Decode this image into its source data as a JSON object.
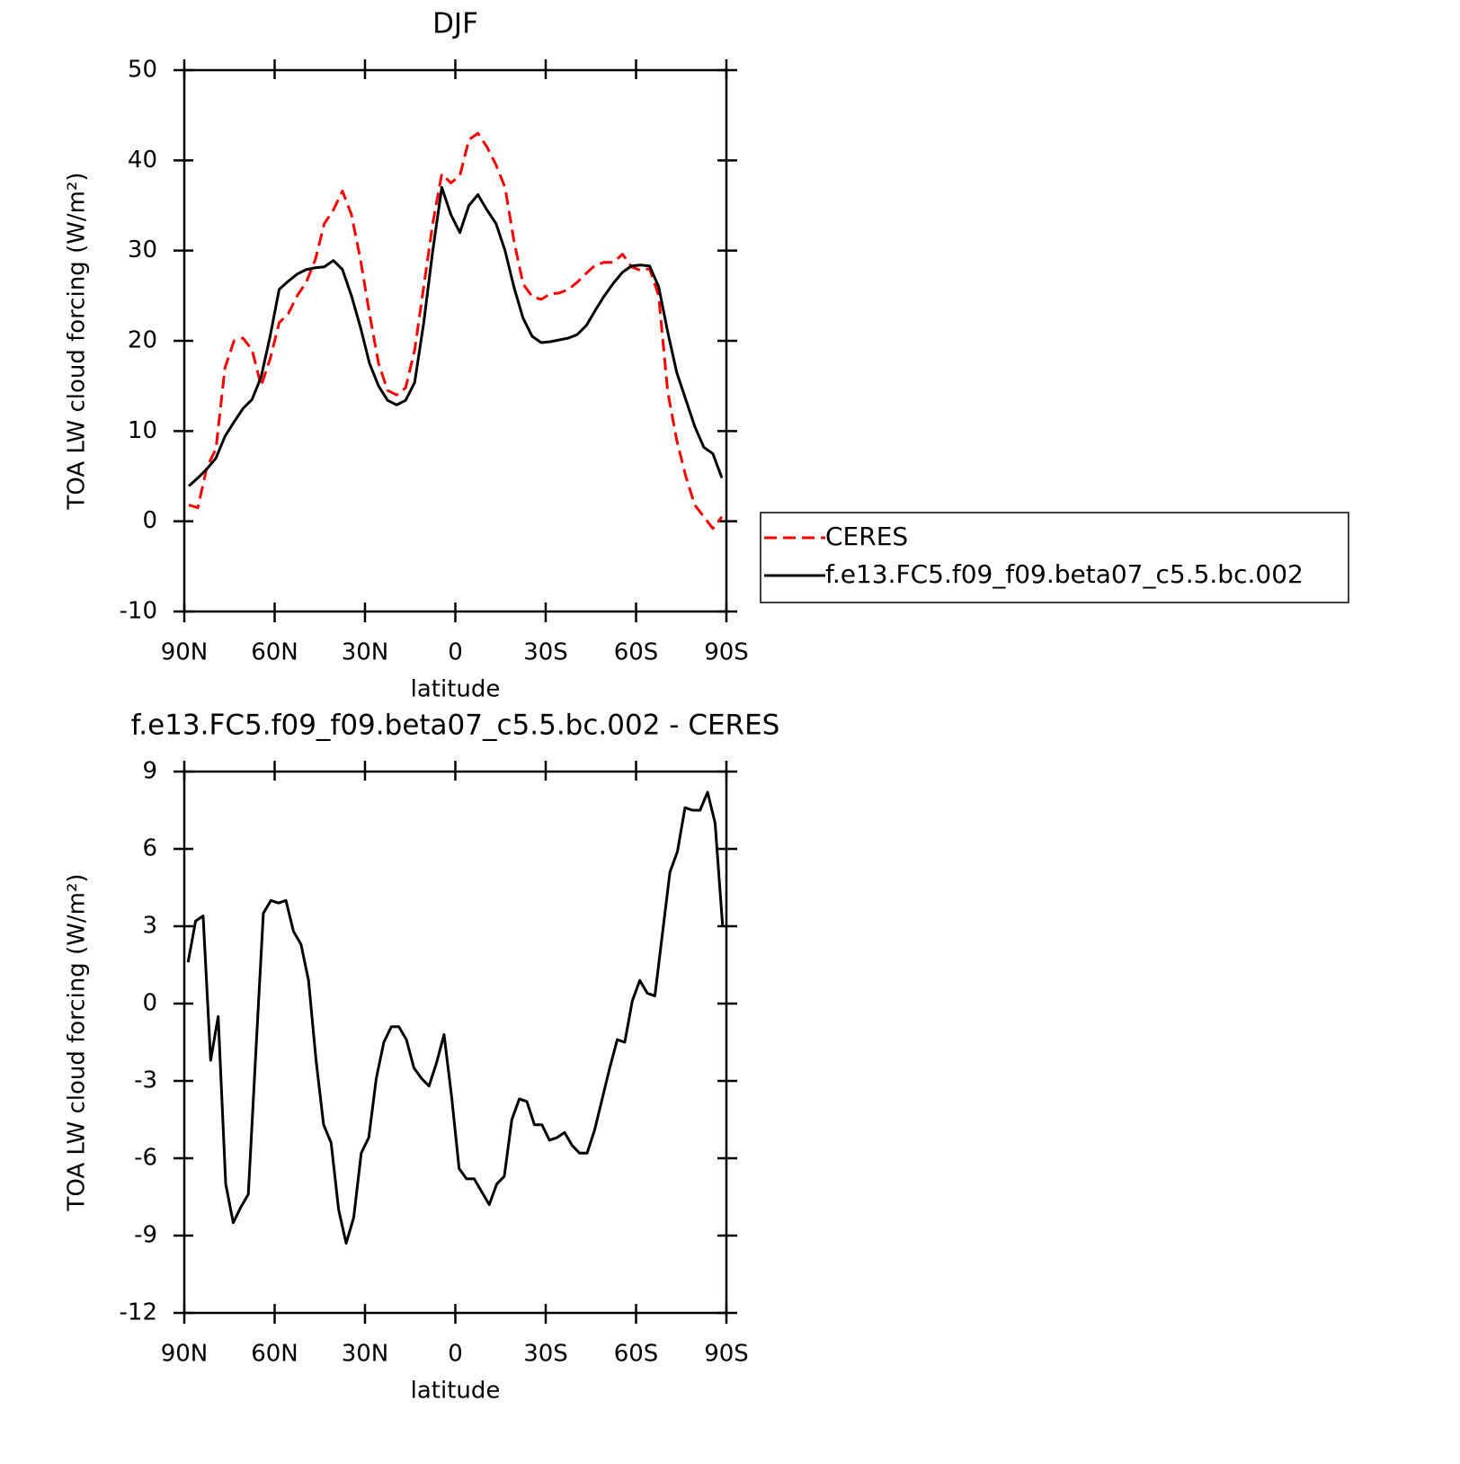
{
  "chart_data": [
    {
      "type": "line",
      "title": "DJF",
      "xlabel": "latitude",
      "ylabel": "TOA LW cloud forcing (W/m²)",
      "x": [
        88.5,
        85.5,
        82.5,
        79.5,
        76.5,
        73.5,
        70.5,
        67.5,
        64.5,
        61.5,
        58.5,
        55.5,
        52.5,
        49.5,
        46.5,
        43.5,
        40.5,
        37.5,
        34.5,
        31.5,
        28.5,
        25.5,
        22.5,
        19.5,
        16.5,
        13.5,
        10.5,
        7.5,
        4.5,
        1.5,
        -1.5,
        -4.5,
        -7.5,
        -10.5,
        -13.5,
        -16.5,
        -19.5,
        -22.5,
        -25.5,
        -28.5,
        -31.5,
        -34.5,
        -37.5,
        -40.5,
        -43.5,
        -46.5,
        -49.5,
        -52.5,
        -55.5,
        -58.5,
        -61.5,
        -64.5,
        -67.5,
        -70.5,
        -73.5,
        -76.5,
        -79.5,
        -82.5,
        -85.5,
        -88.5
      ],
      "series": [
        {
          "name": "CERES",
          "color": "#ff0000",
          "linestyle": "dashed",
          "values": [
            1.8,
            1.5,
            6,
            8,
            17,
            20,
            20.3,
            19,
            15,
            18,
            22,
            23,
            25,
            26.5,
            29,
            33,
            34.5,
            36.6,
            34,
            29,
            23,
            17.5,
            14.5,
            14,
            14.8,
            19,
            26,
            33,
            38.5,
            37.5,
            38.3,
            42.3,
            43,
            41.5,
            39.5,
            37,
            31,
            26.3,
            24.9,
            24.6,
            25.2,
            25.3,
            25.7,
            26.5,
            27.5,
            28.4,
            28.7,
            28.7,
            29.6,
            28.2,
            27.8,
            28,
            25,
            14.4,
            9,
            5,
            1.8,
            0.5,
            -0.8,
            0.5
          ]
        },
        {
          "name": "f.e13.FC5.f09_f09.beta07_c5.5.bc.002",
          "color": "#000000",
          "linestyle": "solid",
          "values": [
            3.9,
            4.8,
            5.8,
            7,
            9.4,
            11,
            12.5,
            13.5,
            16,
            20.5,
            25.7,
            26.6,
            27.4,
            27.9,
            28.1,
            28.2,
            28.9,
            27.9,
            25,
            21.5,
            17.5,
            15,
            13.4,
            12.9,
            13.4,
            15.4,
            22,
            30,
            37,
            34,
            32,
            35,
            36.2,
            34.5,
            33,
            30,
            25.9,
            22.5,
            20.5,
            19.8,
            19.9,
            20.1,
            20.3,
            20.7,
            21.7,
            23.4,
            25,
            26.4,
            27.6,
            28.3,
            28.4,
            28.3,
            26,
            21,
            16.5,
            13.5,
            10.5,
            8.2,
            7.5,
            4.8
          ]
        }
      ],
      "xlim": [
        90,
        -90
      ],
      "xticks": [
        {
          "value": 90,
          "label": "90N"
        },
        {
          "value": 60,
          "label": "60N"
        },
        {
          "value": 30,
          "label": "30N"
        },
        0,
        {
          "value": -30,
          "label": "30S"
        },
        {
          "value": -60,
          "label": "60S"
        },
        {
          "value": -90,
          "label": "90S"
        }
      ],
      "ylim": [
        -10,
        50
      ],
      "yticks": [
        -10,
        0,
        10,
        20,
        30,
        40,
        50
      ],
      "legend": "right"
    },
    {
      "type": "line",
      "title": "f.e13.FC5.f09_f09.beta07_c5.5.bc.002 - CERES",
      "xlabel": "latitude",
      "ylabel": "TOA LW cloud forcing (W/m²)",
      "x": [
        88.75,
        86.25,
        83.75,
        81.25,
        78.75,
        76.25,
        73.75,
        71.25,
        68.75,
        66.25,
        63.75,
        61.25,
        58.75,
        56.25,
        53.75,
        51.25,
        48.75,
        46.25,
        43.75,
        41.25,
        38.75,
        36.25,
        33.75,
        31.25,
        28.75,
        26.25,
        23.75,
        21.25,
        18.75,
        16.25,
        13.75,
        11.25,
        8.75,
        6.25,
        3.75,
        1.25,
        -1.25,
        -3.75,
        -6.25,
        -8.75,
        -11.25,
        -13.75,
        -16.25,
        -18.75,
        -21.25,
        -23.75,
        -26.25,
        -28.75,
        -31.25,
        -33.75,
        -36.25,
        -38.75,
        -41.25,
        -43.75,
        -46.25,
        -48.75,
        -51.25,
        -53.75,
        -56.25,
        -58.75,
        -61.25,
        -63.75,
        -66.25,
        -68.75,
        -71.25,
        -73.75,
        -76.25,
        -78.75,
        -81.25,
        -83.75,
        -86.25,
        -88.75
      ],
      "series": [
        {
          "name": "f.e13.FC5.f09_f09.beta07_c5.5.bc.002 - CERES",
          "color": "#000000",
          "linestyle": "solid",
          "values": [
            1.6,
            3.2,
            3.4,
            -2.2,
            -0.5,
            -7.0,
            -8.5,
            -7.9,
            -7.4,
            -1.9,
            3.5,
            4.0,
            3.9,
            4.0,
            2.8,
            2.3,
            0.9,
            -2.2,
            -4.7,
            -5.4,
            -8.0,
            -9.3,
            -8.3,
            -5.8,
            -5.2,
            -2.9,
            -1.5,
            -0.9,
            -0.9,
            -1.4,
            -2.5,
            -2.9,
            -3.2,
            -2.3,
            -1.2,
            -3.6,
            -6.4,
            -6.8,
            -6.8,
            -7.3,
            -7.8,
            -7.0,
            -6.7,
            -4.5,
            -3.7,
            -3.8,
            -4.7,
            -4.7,
            -5.3,
            -5.2,
            -5.0,
            -5.5,
            -5.8,
            -5.8,
            -4.9,
            -3.7,
            -2.5,
            -1.4,
            -1.5,
            0.1,
            0.9,
            0.4,
            0.3,
            2.7,
            5.1,
            5.9,
            7.6,
            7.5,
            7.5,
            8.2,
            7.0,
            3.0
          ]
        }
      ],
      "xlim": [
        90,
        -90
      ],
      "xticks": [
        {
          "value": 90,
          "label": "90N"
        },
        {
          "value": 60,
          "label": "60N"
        },
        {
          "value": 30,
          "label": "30N"
        },
        0,
        {
          "value": -30,
          "label": "30S"
        },
        {
          "value": -60,
          "label": "60S"
        },
        {
          "value": -90,
          "label": "90S"
        }
      ],
      "ylim": [
        -12,
        9
      ],
      "yticks": [
        -12,
        -9,
        -6,
        -3,
        0,
        3,
        6,
        9
      ]
    }
  ]
}
